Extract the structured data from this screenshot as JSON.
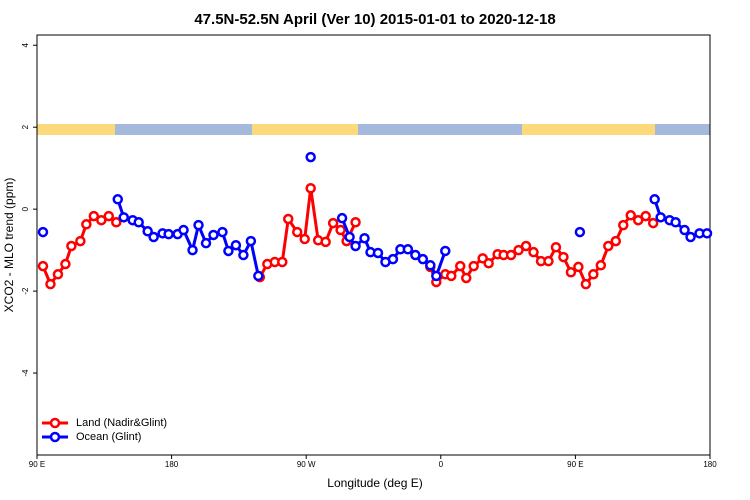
{
  "chart_data": {
    "type": "line",
    "title": "47.5N-52.5N April (Ver 10)   2015-01-01 to 2020-12-18",
    "xlabel": "Longitude (deg E)",
    "ylabel": "XCO2 - MLO trend (ppm)",
    "xlim": [
      90,
      540
    ],
    "xticks": [
      {
        "value": 90,
        "label": "90 E"
      },
      180,
      {
        "value": 270,
        "label": "90 W"
      },
      {
        "value": 360,
        "label": "0"
      },
      {
        "value": 450,
        "label": "90 E"
      },
      {
        "value": 540,
        "label": "180"
      }
    ],
    "ylim": [
      -6.0,
      4.25
    ],
    "yticks": [
      -4,
      -2,
      0,
      2,
      4
    ],
    "legend": "bottom-left",
    "series": [
      {
        "name": "Land (Nadir&Glint)",
        "color": "#ff0000",
        "x": [
          94,
          99,
          104,
          109,
          113,
          119,
          123,
          128,
          133,
          138,
          143,
          null,
          239,
          244,
          249,
          254,
          258,
          264,
          269,
          273,
          278,
          283,
          288,
          293,
          297,
          303,
          null,
          353,
          357,
          363,
          367,
          373,
          377,
          382,
          388,
          392,
          398,
          402,
          407,
          412,
          417,
          422,
          427,
          432,
          437,
          442,
          447,
          452,
          457,
          462,
          467,
          472,
          477,
          482,
          487,
          492,
          497,
          502
        ],
        "values": [
          -1.39,
          -1.83,
          -1.59,
          -1.34,
          -0.9,
          -0.78,
          -0.37,
          -0.17,
          -0.27,
          -0.17,
          -0.32,
          null,
          -1.66,
          -1.34,
          -1.29,
          -1.29,
          -0.24,
          -0.56,
          -0.73,
          0.51,
          -0.76,
          -0.8,
          -0.34,
          -0.51,
          -0.78,
          -0.32,
          null,
          -1.41,
          -1.78,
          -1.59,
          -1.63,
          -1.39,
          -1.68,
          -1.39,
          -1.2,
          -1.32,
          -1.1,
          -1.12,
          -1.12,
          -1.0,
          -0.9,
          -1.05,
          -1.27,
          -1.27,
          -0.93,
          -1.17,
          -1.54,
          -1.41,
          -1.83,
          -1.59,
          -1.37,
          -0.9,
          -0.78,
          -0.39,
          -0.15,
          -0.27,
          -0.17,
          -0.34
        ]
      },
      {
        "name": "Ocean (Glint)",
        "color": "#0000ff",
        "x": [
          94,
          null,
          144,
          148,
          154,
          158,
          164,
          168,
          174,
          178,
          184,
          188,
          194,
          198,
          203,
          208,
          214,
          218,
          223,
          228,
          233,
          238,
          null,
          273,
          null,
          294,
          299,
          303,
          309,
          313,
          318,
          323,
          328,
          333,
          338,
          343,
          348,
          353,
          357,
          363,
          null,
          453,
          null,
          503,
          507,
          513,
          517,
          523,
          527,
          533,
          538
        ],
        "values": [
          -0.56,
          null,
          0.24,
          -0.2,
          -0.27,
          -0.32,
          -0.54,
          -0.68,
          -0.59,
          -0.61,
          -0.61,
          -0.51,
          -1.0,
          -0.39,
          -0.83,
          -0.63,
          -0.56,
          -1.02,
          -0.88,
          -1.12,
          -0.78,
          -1.63,
          null,
          1.27,
          null,
          -0.22,
          -0.68,
          -0.9,
          -0.71,
          -1.05,
          -1.07,
          -1.29,
          -1.22,
          -0.98,
          -0.98,
          -1.12,
          -1.22,
          -1.37,
          -1.63,
          -1.02,
          null,
          -0.56,
          null,
          0.24,
          -0.2,
          -0.27,
          -0.32,
          -0.51,
          -0.68,
          -0.59,
          -0.59
        ]
      }
    ]
  }
}
